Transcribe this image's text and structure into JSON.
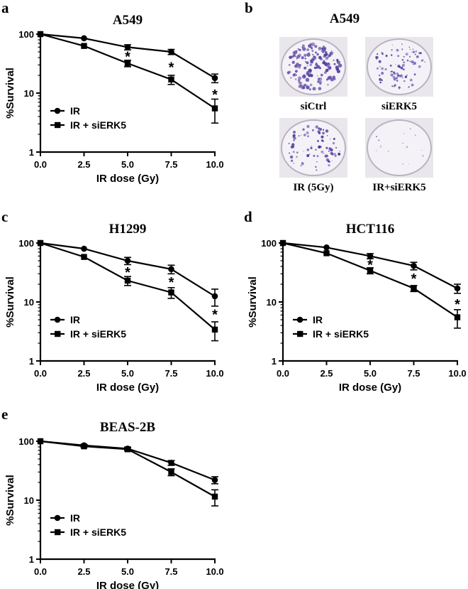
{
  "panel_b": {
    "letter": "b",
    "title": "A549",
    "photos": [
      "siCtrl",
      "siERK5",
      "IR (5Gy)",
      "IR+siERK5"
    ]
  },
  "chart_data": [
    {
      "letter": "a",
      "type": "line",
      "title": "A549",
      "xlabel": "IR dose (Gy)",
      "ylabel": "%Survival",
      "yscale": "log",
      "xlim": [
        0,
        10
      ],
      "ylim": [
        1,
        100
      ],
      "x_ticks": [
        "0.0",
        "2.5",
        "5.0",
        "7.5",
        "10.0"
      ],
      "y_ticks": [
        "1",
        "10",
        "100"
      ],
      "legend_position": "left",
      "x": [
        0,
        2.5,
        5,
        7.5,
        10
      ],
      "series": [
        {
          "name": "IR",
          "marker": "circle",
          "values": [
            100,
            85,
            60,
            50,
            18
          ],
          "errors": [
            0,
            0,
            6,
            5,
            3
          ]
        },
        {
          "name": "IR + siERK5",
          "marker": "square",
          "values": [
            100,
            63,
            32,
            17,
            5.5
          ],
          "errors": [
            0,
            0,
            4,
            3,
            2.4
          ]
        }
      ],
      "significance": [
        {
          "x": 5,
          "label": "*"
        },
        {
          "x": 7.5,
          "label": "*"
        },
        {
          "x": 10,
          "label": "*"
        }
      ]
    },
    {
      "letter": "c",
      "type": "line",
      "title": "H1299",
      "xlabel": "IR dose (Gy)",
      "ylabel": "%Survival",
      "yscale": "log",
      "xlim": [
        0,
        10
      ],
      "ylim": [
        1,
        100
      ],
      "x_ticks": [
        "0.0",
        "2.5",
        "5.0",
        "7.5",
        "10.0"
      ],
      "y_ticks": [
        "1",
        "10",
        "100"
      ],
      "legend_position": "left",
      "x": [
        0,
        2.5,
        5,
        7.5,
        10
      ],
      "series": [
        {
          "name": "IR",
          "marker": "circle",
          "values": [
            100,
            80,
            50,
            36,
            12.5
          ],
          "errors": [
            0,
            0,
            7,
            6,
            4
          ]
        },
        {
          "name": "IR + siERK5",
          "marker": "square",
          "values": [
            100,
            58,
            23,
            14.5,
            3.4
          ],
          "errors": [
            0,
            0,
            4,
            3,
            1.2
          ]
        }
      ],
      "significance": [
        {
          "x": 5,
          "label": "*"
        },
        {
          "x": 7.5,
          "label": "*"
        },
        {
          "x": 10,
          "label": "*"
        }
      ]
    },
    {
      "letter": "d",
      "type": "line",
      "title": "HCT116",
      "xlabel": "IR dose (Gy)",
      "ylabel": "%Survival",
      "yscale": "log",
      "xlim": [
        0,
        10
      ],
      "ylim": [
        1,
        100
      ],
      "x_ticks": [
        "0.0",
        "2.5",
        "5.0",
        "7.5",
        "10.0"
      ],
      "y_ticks": [
        "1",
        "10",
        "100"
      ],
      "legend_position": "left",
      "x": [
        0,
        2.5,
        5,
        7.5,
        10
      ],
      "series": [
        {
          "name": "IR",
          "marker": "circle",
          "values": [
            100,
            84,
            60,
            41,
            17
          ],
          "errors": [
            0,
            0,
            6,
            6,
            3
          ]
        },
        {
          "name": "IR + siERK5",
          "marker": "square",
          "values": [
            100,
            67,
            34,
            17,
            5.5
          ],
          "errors": [
            0,
            0,
            4,
            2,
            1.9
          ]
        }
      ],
      "significance": [
        {
          "x": 5,
          "label": "*"
        },
        {
          "x": 7.5,
          "label": "*"
        },
        {
          "x": 10,
          "label": "*"
        }
      ]
    },
    {
      "letter": "e",
      "type": "line",
      "title": "BEAS-2B",
      "xlabel": "IR dose (Gy)",
      "ylabel": "%Survival",
      "yscale": "log",
      "xlim": [
        0,
        10
      ],
      "ylim": [
        1,
        100
      ],
      "x_ticks": [
        "0.0",
        "2.5",
        "5.0",
        "7.5",
        "10.0"
      ],
      "y_ticks": [
        "1",
        "10",
        "100"
      ],
      "legend_position": "left",
      "x": [
        0,
        2.5,
        5,
        7.5,
        10
      ],
      "series": [
        {
          "name": "IR",
          "marker": "circle",
          "values": [
            100,
            85,
            75,
            43,
            22
          ],
          "errors": [
            0,
            3,
            4,
            4,
            3
          ]
        },
        {
          "name": "IR + siERK5",
          "marker": "square",
          "values": [
            100,
            82,
            73,
            30,
            11.5
          ],
          "errors": [
            0,
            3,
            4,
            4,
            3.5
          ]
        }
      ],
      "significance": []
    }
  ]
}
